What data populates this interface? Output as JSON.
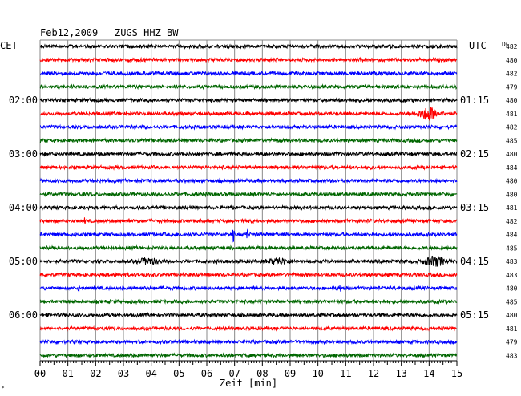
{
  "header": {
    "date": "Feb12,2009",
    "station": "ZUGS HHZ BW",
    "left_tz": "CET",
    "right_tz": "UTC",
    "dc_label": "DC"
  },
  "chart_data": {
    "type": "line",
    "title": "Feb12,2009   ZUGS HHZ BW",
    "xlabel": "Zeit [min]",
    "ylabel": "",
    "xlim": [
      0,
      15
    ],
    "x_ticks": [
      "00",
      "01",
      "02",
      "03",
      "04",
      "05",
      "06",
      "07",
      "08",
      "09",
      "10",
      "11",
      "12",
      "13",
      "14",
      "15"
    ],
    "grid": true,
    "trace_colors": [
      "#000000",
      "#ff0000",
      "#0000ff",
      "#006600"
    ],
    "left_time_labels": [
      "02:00",
      "03:00",
      "04:00",
      "05:00",
      "06:00"
    ],
    "right_time_labels": [
      "01:15",
      "02:15",
      "03:15",
      "04:15",
      "05:15"
    ],
    "time_label_rows": [
      4,
      8,
      12,
      16,
      20
    ],
    "dc_offsets": [
      482,
      480,
      482,
      479,
      480,
      481,
      482,
      485,
      480,
      484,
      480,
      480,
      481,
      482,
      484,
      485,
      483,
      483,
      480,
      485,
      480,
      481,
      479,
      483
    ],
    "events": [
      {
        "row": 5,
        "minute": 14.0,
        "amplitude": 3.5,
        "kind": "burst"
      },
      {
        "row": 13,
        "minute": 1.6,
        "amplitude": 1.6,
        "kind": "spike"
      },
      {
        "row": 13,
        "minute": 3.2,
        "amplitude": 1.6,
        "kind": "spike"
      },
      {
        "row": 14,
        "minute": 6.95,
        "amplitude": 4.0,
        "kind": "spike"
      },
      {
        "row": 14,
        "minute": 7.45,
        "amplitude": 4.0,
        "kind": "spike"
      },
      {
        "row": 16,
        "minute": 3.9,
        "amplitude": 1.4,
        "kind": "burst"
      },
      {
        "row": 16,
        "minute": 8.6,
        "amplitude": 1.4,
        "kind": "burst"
      },
      {
        "row": 16,
        "minute": 14.2,
        "amplitude": 2.4,
        "kind": "burst"
      },
      {
        "row": 18,
        "minute": 1.4,
        "amplitude": 1.6,
        "kind": "spike"
      },
      {
        "row": 18,
        "minute": 10.8,
        "amplitude": 1.6,
        "kind": "spike"
      },
      {
        "row": 19,
        "minute": 5.3,
        "amplitude": 1.4,
        "kind": "spike"
      }
    ]
  }
}
